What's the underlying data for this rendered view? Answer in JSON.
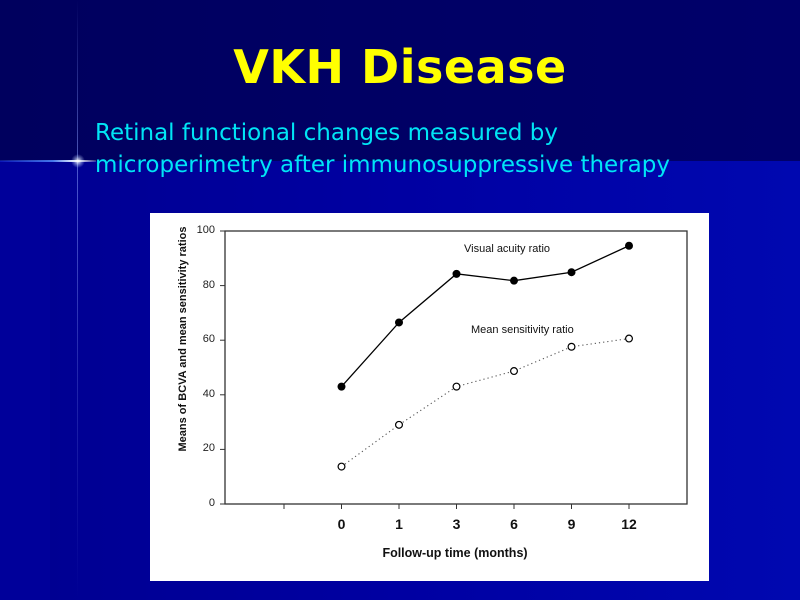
{
  "slide": {
    "title": "VKH Disease",
    "subtitle": "Retinal functional changes measured by microperimetry after immunosuppressive therapy",
    "colors": {
      "title": "#ffff00",
      "subtitle": "#00e5f5",
      "background_top": "#000066",
      "background_bottom": "#0000a2",
      "chart_background": "#ffffff"
    }
  },
  "chart_data": {
    "type": "line",
    "title": "",
    "xlabel": "Follow-up time (months)",
    "ylabel": "Means of BCVA and mean sensitivity ratios",
    "categories": [
      "0",
      "1",
      "3",
      "6",
      "9",
      "12"
    ],
    "x_tick_labels": [
      "",
      "0",
      "1",
      "3",
      "6",
      "9",
      "12"
    ],
    "y_ticks": [
      0,
      20,
      40,
      60,
      80,
      100
    ],
    "ylim": [
      0,
      100
    ],
    "grid": false,
    "legend_position": "inline annotations",
    "series": [
      {
        "name": "Visual acuity ratio",
        "values": [
          43,
          66.5,
          84.3,
          81.8,
          84.9,
          94.6
        ],
        "marker": "filled-circle",
        "line_style": "solid",
        "color": "#000000"
      },
      {
        "name": "Mean sensitivity ratio",
        "values": [
          13.7,
          29,
          43,
          48.7,
          57.6,
          60.6
        ],
        "marker": "open-circle",
        "line_style": "dotted",
        "color": "#000000"
      }
    ]
  }
}
